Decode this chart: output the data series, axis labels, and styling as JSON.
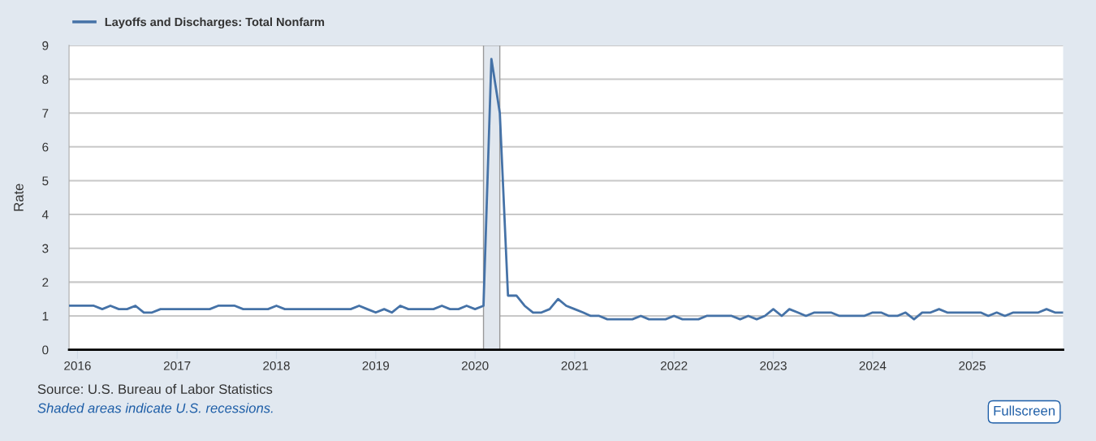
{
  "chart_data": {
    "type": "line",
    "ylabel": "Rate",
    "x": [
      "2015-12",
      "2016-01",
      "2016-02",
      "2016-03",
      "2016-04",
      "2016-05",
      "2016-06",
      "2016-07",
      "2016-08",
      "2016-09",
      "2016-10",
      "2016-11",
      "2016-12",
      "2017-01",
      "2017-02",
      "2017-03",
      "2017-04",
      "2017-05",
      "2017-06",
      "2017-07",
      "2017-08",
      "2017-09",
      "2017-10",
      "2017-11",
      "2017-12",
      "2018-01",
      "2018-02",
      "2018-03",
      "2018-04",
      "2018-05",
      "2018-06",
      "2018-07",
      "2018-08",
      "2018-09",
      "2018-10",
      "2018-11",
      "2018-12",
      "2019-01",
      "2019-02",
      "2019-03",
      "2019-04",
      "2019-05",
      "2019-06",
      "2019-07",
      "2019-08",
      "2019-09",
      "2019-10",
      "2019-11",
      "2019-12",
      "2020-01",
      "2020-02",
      "2020-03",
      "2020-04",
      "2020-05",
      "2020-06",
      "2020-07",
      "2020-08",
      "2020-09",
      "2020-10",
      "2020-11",
      "2020-12",
      "2021-01",
      "2021-02",
      "2021-03",
      "2021-04",
      "2021-05",
      "2021-06",
      "2021-07",
      "2021-08",
      "2021-09",
      "2021-10",
      "2021-11",
      "2021-12",
      "2022-01",
      "2022-02",
      "2022-03",
      "2022-04",
      "2022-05",
      "2022-06",
      "2022-07",
      "2022-08",
      "2022-09",
      "2022-10",
      "2022-11",
      "2022-12",
      "2023-01",
      "2023-02",
      "2023-03",
      "2023-04",
      "2023-05",
      "2023-06",
      "2023-07",
      "2023-08",
      "2023-09",
      "2023-10",
      "2023-11",
      "2023-12",
      "2024-01",
      "2024-02",
      "2024-03",
      "2024-04",
      "2024-05",
      "2024-06",
      "2024-07",
      "2024-08",
      "2024-09",
      "2024-10",
      "2024-11",
      "2024-12",
      "2025-01",
      "2025-02",
      "2025-03",
      "2025-04",
      "2025-05",
      "2025-06",
      "2025-07",
      "2025-08",
      "2025-09",
      "2025-10",
      "2025-11",
      "2025-12"
    ],
    "series": [
      {
        "name": "Layoffs and Discharges: Total Nonfarm",
        "color": "#4572a7",
        "values": [
          1.3,
          1.3,
          1.3,
          1.3,
          1.2,
          1.3,
          1.2,
          1.2,
          1.3,
          1.1,
          1.1,
          1.2,
          1.2,
          1.2,
          1.2,
          1.2,
          1.2,
          1.2,
          1.3,
          1.3,
          1.3,
          1.2,
          1.2,
          1.2,
          1.2,
          1.3,
          1.2,
          1.2,
          1.2,
          1.2,
          1.2,
          1.2,
          1.2,
          1.2,
          1.2,
          1.3,
          1.2,
          1.1,
          1.2,
          1.1,
          1.3,
          1.2,
          1.2,
          1.2,
          1.2,
          1.3,
          1.2,
          1.2,
          1.3,
          1.2,
          1.3,
          8.6,
          7.0,
          1.6,
          1.6,
          1.3,
          1.1,
          1.1,
          1.2,
          1.5,
          1.3,
          1.2,
          1.1,
          1.0,
          1.0,
          0.9,
          0.9,
          0.9,
          0.9,
          1.0,
          0.9,
          0.9,
          0.9,
          1.0,
          0.9,
          0.9,
          0.9,
          1.0,
          1.0,
          1.0,
          1.0,
          0.9,
          1.0,
          0.9,
          1.0,
          1.2,
          1.0,
          1.2,
          1.1,
          1.0,
          1.1,
          1.1,
          1.1,
          1.0,
          1.0,
          1.0,
          1.0,
          1.1,
          1.1,
          1.0,
          1.0,
          1.1,
          0.9,
          1.1,
          1.1,
          1.2,
          1.1,
          1.1,
          1.1,
          1.1,
          1.1,
          1.0,
          1.1,
          1.0,
          1.1,
          1.1,
          1.1,
          1.1,
          1.2,
          1.1,
          1.1
        ]
      }
    ],
    "xlim": [
      "2015-12",
      "2025-12"
    ],
    "xticks": [
      {
        "value": "2016-01",
        "label": "2016"
      },
      {
        "value": "2017-01",
        "label": "2017"
      },
      {
        "value": "2018-01",
        "label": "2018"
      },
      {
        "value": "2019-01",
        "label": "2019"
      },
      {
        "value": "2020-01",
        "label": "2020"
      },
      {
        "value": "2021-01",
        "label": "2021"
      },
      {
        "value": "2022-01",
        "label": "2022"
      },
      {
        "value": "2023-01",
        "label": "2023"
      },
      {
        "value": "2024-01",
        "label": "2024"
      },
      {
        "value": "2025-01",
        "label": "2025"
      }
    ],
    "ylim": [
      0,
      9
    ],
    "yticks": [
      0,
      1,
      2,
      3,
      4,
      5,
      6,
      7,
      8,
      9
    ],
    "grid": "y",
    "legend": "top left",
    "marker": "none",
    "line_style": "solid",
    "bands": [
      {
        "axis": "x",
        "from": "2020-02",
        "to": "2020-04",
        "color": "#e1e7ee"
      }
    ],
    "annotations": [
      "Source: U.S. Bureau of Labor Statistics",
      "Shaded areas indicate U.S. recessions.",
      "Fullscreen"
    ]
  }
}
